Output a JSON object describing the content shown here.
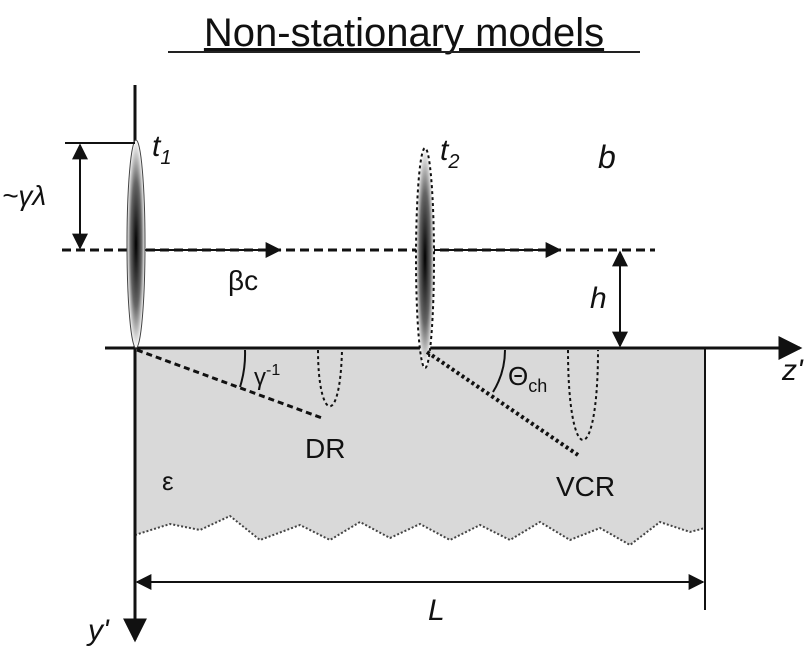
{
  "title": "Non-stationary models",
  "labels": {
    "panel": "b",
    "t1": {
      "base": "t",
      "sub": "1"
    },
    "t2": {
      "base": "t",
      "sub": "2"
    },
    "width": "~γλ",
    "velocity": "βc",
    "height": "h",
    "z_axis": "z'",
    "y_axis": "y'",
    "dr_angle": {
      "base": "γ",
      "sup": "-1"
    },
    "vcr_angle": {
      "base": "Θ",
      "sub": "ch"
    },
    "dr": "DR",
    "vcr": "VCR",
    "medium": "ε",
    "length": "L"
  }
}
